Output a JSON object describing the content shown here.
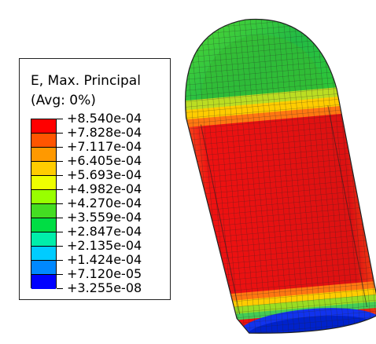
{
  "legend": {
    "title": "E, Max. Principal",
    "subtitle": "(Avg: 0%)",
    "ticks": [
      "+8.540e-04",
      "+7.828e-04",
      "+7.117e-04",
      "+6.405e-04",
      "+5.693e-04",
      "+4.982e-04",
      "+4.270e-04",
      "+3.559e-04",
      "+2.847e-04",
      "+2.135e-04",
      "+1.424e-04",
      "+7.120e-05",
      "+3.255e-08"
    ],
    "band_colors": [
      "#ff0000",
      "#ff5500",
      "#ff9900",
      "#ffcc00",
      "#eeff00",
      "#99ff00",
      "#44dd22",
      "#00dd44",
      "#00eeaa",
      "#00ccff",
      "#0088ff",
      "#0000ff"
    ]
  },
  "model": {
    "cap_color": "#22bb44",
    "cap_top_color": "#33cc33",
    "shoulder_color": "#ccdd22",
    "body_color": "#ee1111",
    "lower_ring_color": "#ff7711",
    "bottom_ring_color": "#99dd22",
    "base_color": "#1133ee",
    "mesh_color": "#222222"
  }
}
